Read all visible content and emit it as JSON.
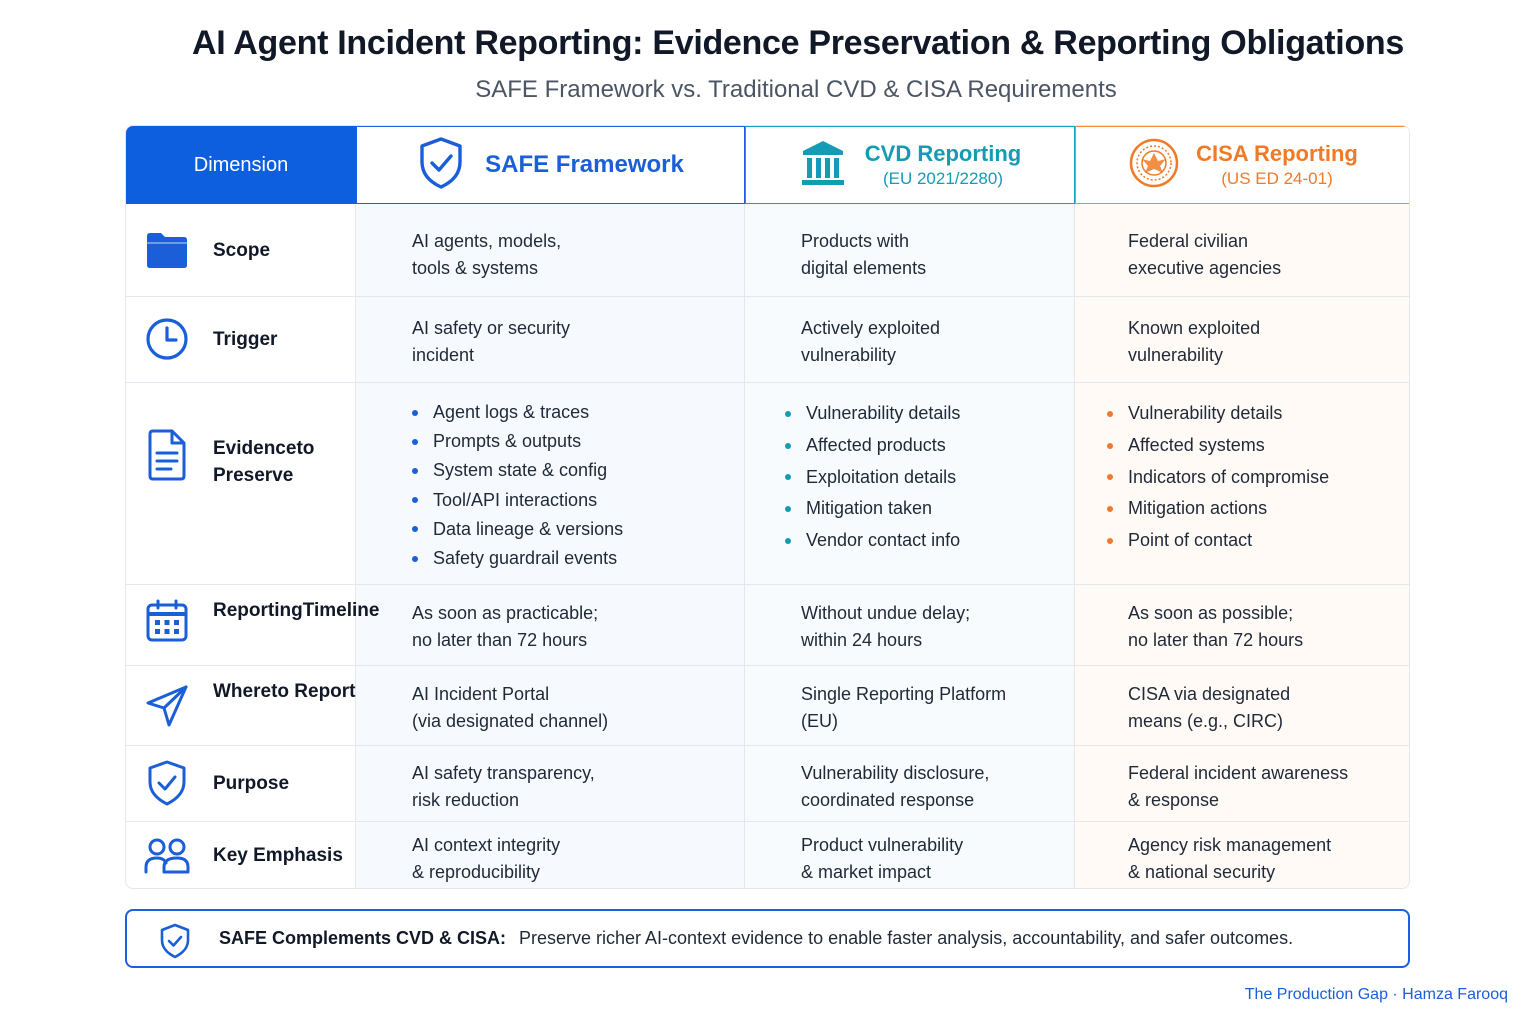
{
  "title": "AI Agent Incident Reporting: Evidence Preservation & Reporting Obligations",
  "subtitle": "SAFE Framework vs. Traditional CVD & CISA Requirements",
  "header": {
    "dimension": "Dimension",
    "safe": {
      "name": "SAFE Framework",
      "icon": "shield-check-icon"
    },
    "cvd": {
      "name": "CVD Reporting",
      "sub": "(EU 2021/2280)",
      "icon": "bank-building-icon"
    },
    "cisa": {
      "name": "CISA Reporting",
      "sub": "(US ED 24-01)",
      "icon": "seal-icon"
    }
  },
  "rows": {
    "scope": {
      "label": [
        "Scope"
      ],
      "icon": "folder-icon",
      "safe": [
        "AI agents, models,",
        "tools & systems"
      ],
      "cvd": [
        "Products with",
        "digital elements"
      ],
      "cisa": [
        "Federal civilian",
        "executive agencies"
      ]
    },
    "trigger": {
      "label": [
        "Trigger"
      ],
      "icon": "clock-icon",
      "safe": [
        "AI safety or security",
        "incident"
      ],
      "cvd": [
        "Actively exploited",
        "vulnerability"
      ],
      "cisa": [
        "Known exploited",
        "vulnerability"
      ]
    },
    "evidence": {
      "label": [
        "Evidence",
        "to Preserve"
      ],
      "icon": "document-icon",
      "safe": [
        "Agent logs & traces",
        "Prompts & outputs",
        "System state & config",
        "Tool/API interactions",
        "Data lineage & versions",
        "Safety guardrail events"
      ],
      "cvd": [
        "Vulnerability details",
        "Affected products",
        "Exploitation details",
        "Mitigation taken",
        "Vendor contact info"
      ],
      "cisa": [
        "Vulnerability details",
        "Affected systems",
        "Indicators of compromise",
        "Mitigation actions",
        "Point of contact"
      ]
    },
    "timeline": {
      "label": [
        "Reporting",
        "Timeline"
      ],
      "icon": "calendar-icon",
      "safe": [
        "As soon as practicable;",
        "no later than 72 hours"
      ],
      "cvd": [
        "Without undue delay;",
        "within 24 hours"
      ],
      "cisa": [
        "As soon as possible;",
        "no later than 72 hours"
      ]
    },
    "where": {
      "label": [
        "Where",
        "to Report"
      ],
      "icon": "send-icon",
      "safe": [
        "AI Incident Portal",
        "(via designated channel)"
      ],
      "cvd": [
        "Single Reporting Platform",
        "(EU)"
      ],
      "cisa": [
        "CISA via designated",
        "means (e.g., CIRC)"
      ]
    },
    "purpose": {
      "label": [
        "Purpose"
      ],
      "icon": "shield-check-icon",
      "safe": [
        "AI safety transparency,",
        "risk reduction"
      ],
      "cvd": [
        "Vulnerability disclosure,",
        "coordinated response"
      ],
      "cisa": [
        "Federal incident awareness",
        "& response"
      ]
    },
    "emphasis": {
      "label": [
        "Key Emphasis"
      ],
      "icon": "users-icon",
      "safe": [
        "AI context integrity",
        "& reproducibility"
      ],
      "cvd": [
        "Product vulnerability",
        "& market impact"
      ],
      "cisa": [
        "Agency risk management",
        "& national security"
      ]
    }
  },
  "footer": {
    "bold": "SAFE Complements CVD & CISA:",
    "text": "Preserve richer AI-context evidence to enable faster analysis, accountability, and safer outcomes.",
    "icon": "shield-check-icon"
  },
  "credit": "The Production Gap · Hamza Farooq",
  "colors": {
    "safe": "#1a5fd8",
    "cvd": "#139cb4",
    "cisa": "#f07a25",
    "dimension_header": "#0d5fe0"
  }
}
